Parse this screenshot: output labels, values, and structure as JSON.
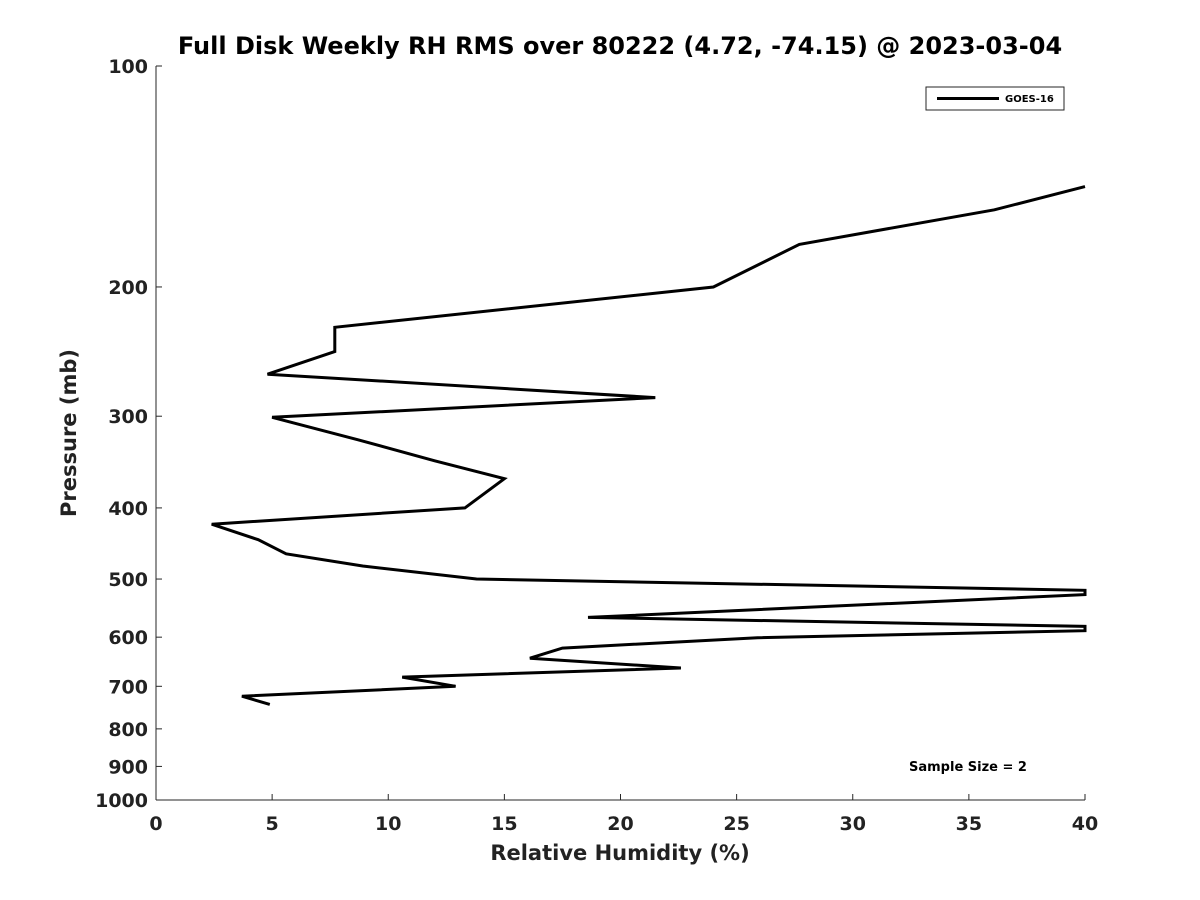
{
  "chart_data": {
    "type": "line",
    "title": "Full Disk Weekly RH RMS over 80222 (4.72, -74.15) @ 2023-03-04",
    "xlabel": "Relative Humidity (%)",
    "ylabel": "Pressure (mb)",
    "xlim": [
      0,
      40
    ],
    "ylim": [
      100,
      1000
    ],
    "yscale": "log",
    "yreversed": true,
    "xticks": [
      0,
      5,
      10,
      15,
      20,
      25,
      30,
      35,
      40
    ],
    "yticks": [
      100,
      200,
      300,
      400,
      500,
      600,
      700,
      800,
      900,
      1000
    ],
    "legend": {
      "location": "top-right",
      "entries": [
        "GOES-16"
      ]
    },
    "annotation": "Sample Size = 2",
    "series": [
      {
        "name": "GOES-16",
        "color": "#000000",
        "points": [
          [
            40.0,
            146
          ],
          [
            36.1,
            157
          ],
          [
            27.7,
            175
          ],
          [
            24.0,
            200
          ],
          [
            7.7,
            227
          ],
          [
            7.7,
            245
          ],
          [
            4.8,
            263
          ],
          [
            21.5,
            283
          ],
          [
            5.0,
            301
          ],
          [
            8.7,
            323
          ],
          [
            12.0,
            345
          ],
          [
            15.0,
            365
          ],
          [
            13.3,
            400
          ],
          [
            2.4,
            421
          ],
          [
            4.4,
            442
          ],
          [
            5.6,
            462
          ],
          [
            8.9,
            480
          ],
          [
            13.8,
            500
          ],
          [
            40.0,
            518
          ],
          [
            40.0,
            525
          ],
          [
            18.6,
            564
          ],
          [
            40.0,
            580
          ],
          [
            40.0,
            588
          ],
          [
            25.9,
            601
          ],
          [
            17.5,
            621
          ],
          [
            16.1,
            641
          ],
          [
            22.6,
            661
          ],
          [
            10.6,
            680
          ],
          [
            12.9,
            700
          ],
          [
            3.7,
            722
          ],
          [
            4.9,
            741
          ]
        ]
      }
    ]
  }
}
